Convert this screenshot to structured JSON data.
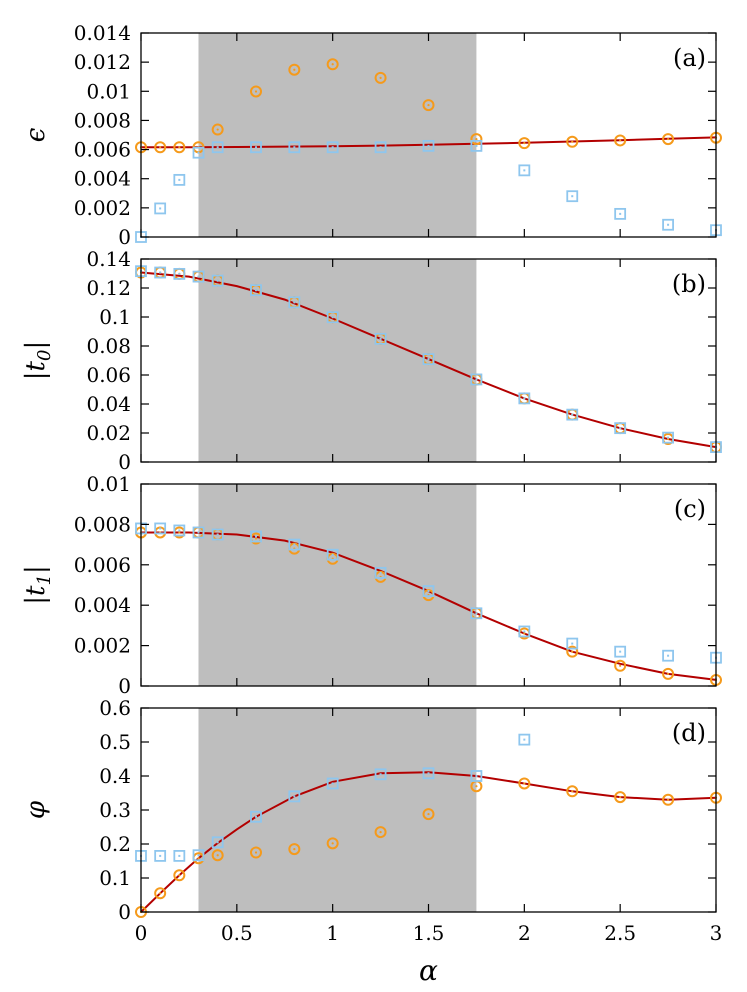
{
  "chart_data": {
    "type": "scatter",
    "layout": "4 vertically stacked panels sharing x-axis",
    "xlabel": "α",
    "xlim": [
      0,
      3
    ],
    "xticks": [
      "0",
      "0.5",
      "1",
      "1.5",
      "2",
      "2.5",
      "3"
    ],
    "shaded_region": {
      "x_range": [
        0.3,
        1.75
      ],
      "color": "#bebebe"
    },
    "colors": {
      "line": "#b30000",
      "circles": "#f59a1b",
      "squares": "#8ec6ee",
      "shade": "#bebebe"
    },
    "panels": [
      {
        "label": "(a)",
        "ylabel": "ϵ",
        "ylim": [
          0,
          0.015
        ],
        "yticks": [
          "0",
          "0.002",
          "0.004",
          "0.006",
          "0.008",
          "0.01",
          "0.012",
          "0.014"
        ],
        "series": [
          {
            "kind": "line",
            "x": [
              0,
              0.25,
              0.5,
              0.75,
              1,
              1.25,
              1.5,
              1.75,
              2,
              2.25,
              2.5,
              2.75,
              3
            ],
            "y": [
              0.0066,
              0.0066,
              0.00662,
              0.00665,
              0.00668,
              0.00672,
              0.00678,
              0.00685,
              0.00693,
              0.00702,
              0.00712,
              0.00722,
              0.00732
            ]
          },
          {
            "kind": "circle",
            "x": [
              0,
              0.1,
              0.2,
              0.3,
              0.4,
              0.6,
              0.8,
              1,
              1.25,
              1.5,
              1.75,
              2,
              2.25,
              2.5,
              2.75,
              3
            ],
            "y": [
              0.0066,
              0.0066,
              0.0066,
              0.0066,
              0.0079,
              0.0107,
              0.0123,
              0.0127,
              0.0117,
              0.0097,
              0.0072,
              0.0069,
              0.007,
              0.0071,
              0.0072,
              0.0073
            ]
          },
          {
            "kind": "square",
            "x": [
              0,
              0.1,
              0.2,
              0.3,
              0.4,
              0.6,
              0.8,
              1,
              1.25,
              1.5,
              1.75,
              2,
              2.25,
              2.5,
              2.75,
              3
            ],
            "y": [
              0.0,
              0.0021,
              0.0042,
              0.0062,
              0.0066,
              0.0066,
              0.0066,
              0.0066,
              0.0066,
              0.0067,
              0.0067,
              0.0049,
              0.003,
              0.0017,
              0.0009,
              0.0005
            ]
          }
        ]
      },
      {
        "label": "(b)",
        "ylabel": "|t0|",
        "ylabel_main": "|t",
        "ylabel_sub": "0",
        "ylabel_end": "|",
        "ylim": [
          0,
          0.15
        ],
        "yticks": [
          "0",
          "0.02",
          "0.04",
          "0.06",
          "0.08",
          "0.1",
          "0.12",
          "0.14"
        ],
        "series": [
          {
            "kind": "line",
            "x": [
              0,
              0.25,
              0.5,
              0.75,
              1,
              1.25,
              1.5,
              1.75,
              2,
              2.25,
              2.5,
              2.75,
              3
            ],
            "y": [
              0.14,
              0.137,
              0.13,
              0.12,
              0.106,
              0.091,
              0.076,
              0.061,
              0.047,
              0.035,
              0.025,
              0.017,
              0.011
            ]
          },
          {
            "kind": "circle",
            "x": [
              0,
              0.1,
              0.2,
              0.3,
              0.4,
              0.6,
              0.8,
              1,
              1.25,
              1.5,
              1.75,
              2,
              2.25,
              2.5,
              2.75,
              3
            ],
            "y": [
              0.14,
              0.14,
              0.139,
              0.137,
              0.134,
              0.127,
              0.118,
              0.107,
              0.091,
              0.076,
              0.061,
              0.047,
              0.035,
              0.025,
              0.017,
              0.011
            ]
          },
          {
            "kind": "square",
            "x": [
              0,
              0.1,
              0.2,
              0.3,
              0.4,
              0.6,
              0.8,
              1,
              1.25,
              1.5,
              1.75,
              2,
              2.25,
              2.5,
              2.75,
              3
            ],
            "y": [
              0.141,
              0.14,
              0.139,
              0.137,
              0.134,
              0.127,
              0.118,
              0.107,
              0.091,
              0.076,
              0.061,
              0.047,
              0.035,
              0.025,
              0.018,
              0.011
            ]
          }
        ]
      },
      {
        "label": "(c)",
        "ylabel": "|t1|",
        "ylabel_main": "|t",
        "ylabel_sub": "1",
        "ylabel_end": "|",
        "ylim": [
          0,
          0.01
        ],
        "yticks": [
          "0",
          "0.002",
          "0.004",
          "0.006",
          "0.008",
          "0.01"
        ],
        "series": [
          {
            "kind": "line",
            "x": [
              0,
              0.25,
              0.5,
              0.75,
              1,
              1.25,
              1.5,
              1.75,
              2,
              2.25,
              2.5,
              2.75,
              3
            ],
            "y": [
              0.0076,
              0.0076,
              0.0075,
              0.0072,
              0.0066,
              0.0057,
              0.0047,
              0.0036,
              0.0026,
              0.0017,
              0.0011,
              0.0006,
              0.0003
            ]
          },
          {
            "kind": "circle",
            "x": [
              0,
              0.1,
              0.2,
              0.3,
              0.4,
              0.6,
              0.8,
              1,
              1.25,
              1.5,
              1.75,
              2,
              2.25,
              2.5,
              2.75,
              3
            ],
            "y": [
              0.0076,
              0.0076,
              0.0076,
              0.0076,
              0.0075,
              0.0073,
              0.0068,
              0.0063,
              0.0054,
              0.0045,
              0.0036,
              0.0026,
              0.0017,
              0.001,
              0.0006,
              0.0003
            ]
          },
          {
            "kind": "square",
            "x": [
              0,
              0.1,
              0.2,
              0.3,
              0.4,
              0.6,
              0.8,
              1,
              1.25,
              1.5,
              1.75,
              2,
              2.25,
              2.5,
              2.75,
              3
            ],
            "y": [
              0.0078,
              0.0078,
              0.0077,
              0.0076,
              0.0075,
              0.0074,
              0.007,
              0.0065,
              0.0056,
              0.0047,
              0.0036,
              0.0027,
              0.0021,
              0.0017,
              0.0015,
              0.0014
            ]
          }
        ]
      },
      {
        "label": "(d)",
        "ylabel": "φ",
        "ylim": [
          0,
          0.6
        ],
        "yticks": [
          "0",
          "0.1",
          "0.2",
          "0.3",
          "0.4",
          "0.5",
          "0.6"
        ],
        "series": [
          {
            "kind": "line",
            "x": [
              0,
              0.1,
              0.2,
              0.3,
              0.4,
              0.5,
              0.6,
              0.8,
              1,
              1.25,
              1.5,
              1.75,
              2,
              2.25,
              2.5,
              2.75,
              3
            ],
            "y": [
              0.0,
              0.055,
              0.108,
              0.158,
              0.203,
              0.243,
              0.28,
              0.34,
              0.383,
              0.408,
              0.411,
              0.4,
              0.378,
              0.355,
              0.338,
              0.33,
              0.336
            ]
          },
          {
            "kind": "circle",
            "x": [
              0,
              0.1,
              0.2,
              0.3,
              0.4,
              0.6,
              0.8,
              1,
              1.25,
              1.5,
              1.75,
              2,
              2.25,
              2.5,
              2.75,
              3
            ],
            "y": [
              0.0,
              0.055,
              0.108,
              0.158,
              0.167,
              0.175,
              0.185,
              0.202,
              0.235,
              0.288,
              0.37,
              0.378,
              0.355,
              0.338,
              0.33,
              0.336
            ]
          },
          {
            "kind": "square",
            "x": [
              0,
              0.1,
              0.2,
              0.3,
              0.4,
              0.6,
              0.8,
              1,
              1.25,
              1.5,
              1.75,
              2
            ],
            "y": [
              0.165,
              0.165,
              0.165,
              0.167,
              0.205,
              0.28,
              0.34,
              0.378,
              0.405,
              0.408,
              0.4,
              0.507
            ]
          }
        ]
      }
    ]
  }
}
